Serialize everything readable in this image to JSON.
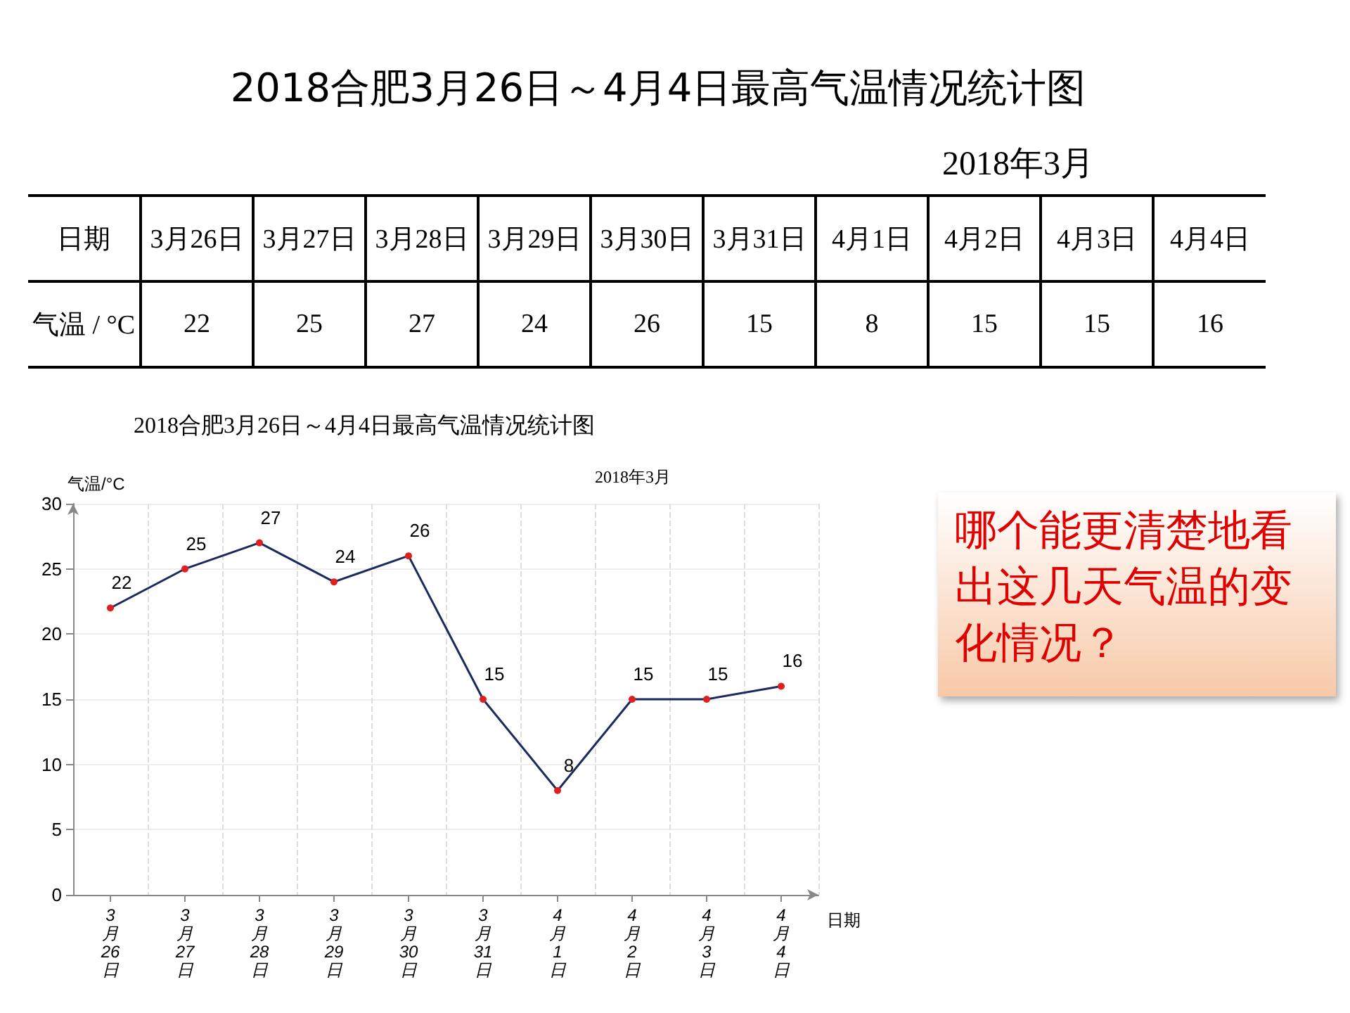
{
  "chart_data": [
    {
      "type": "other",
      "title": "2018合肥3月26日～4月4日最高气温情况统计图",
      "subtitle": "2018年3月",
      "xlabel": "日期",
      "ylabel": "气温 / °C",
      "categories": [
        "3月26日",
        "3月27日",
        "3月28日",
        "3月29日",
        "3月30日",
        "3月31日",
        "4月1日",
        "4月2日",
        "4月3日",
        "4月4日"
      ],
      "values": [
        22,
        25,
        27,
        24,
        26,
        15,
        8,
        15,
        15,
        16
      ],
      "data_labels": true
    },
    {
      "type": "line",
      "title": "2018合肥3月26日～4月4日最高气温情况统计图",
      "subtitle": "2018年3月",
      "xlabel": "日期",
      "ylabel": "气温/°C",
      "categories": [
        "3月26日",
        "3月27日",
        "3月28日",
        "3月29日",
        "3月30日",
        "3月31日",
        "4月1日",
        "4月2日",
        "4月3日",
        "4月4日"
      ],
      "series": [
        {
          "color": "#1b2a5e",
          "colors": [
            "#e02020",
            "#e02020",
            "#e02020",
            "#e02020",
            "#e02020",
            "#e02020",
            "#e02020",
            "#e02020",
            "#e02020",
            "#e02020"
          ],
          "values": [
            22,
            25,
            27,
            24,
            26,
            15,
            8,
            15,
            15,
            16
          ]
        }
      ],
      "ylim": [
        0,
        30
      ],
      "yticks": [
        0,
        5,
        10,
        15,
        20,
        25,
        30
      ],
      "grid": true,
      "marker": "circle",
      "line_style": "solid",
      "data_labels": true,
      "annotations": [
        "哪个能更清楚地看出这几天气温的变化情况？"
      ]
    }
  ]
}
